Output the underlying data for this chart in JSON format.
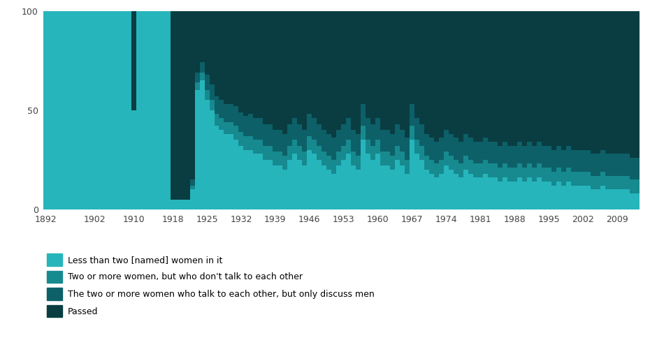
{
  "years": [
    1892,
    1893,
    1894,
    1895,
    1896,
    1897,
    1898,
    1899,
    1900,
    1901,
    1902,
    1903,
    1904,
    1905,
    1906,
    1907,
    1908,
    1909,
    1910,
    1911,
    1912,
    1913,
    1914,
    1915,
    1916,
    1917,
    1918,
    1919,
    1920,
    1921,
    1922,
    1923,
    1924,
    1925,
    1926,
    1927,
    1928,
    1929,
    1930,
    1931,
    1932,
    1933,
    1934,
    1935,
    1936,
    1937,
    1938,
    1939,
    1940,
    1941,
    1942,
    1943,
    1944,
    1945,
    1946,
    1947,
    1948,
    1949,
    1950,
    1951,
    1952,
    1953,
    1954,
    1955,
    1956,
    1957,
    1958,
    1959,
    1960,
    1961,
    1962,
    1963,
    1964,
    1965,
    1966,
    1967,
    1968,
    1969,
    1970,
    1971,
    1972,
    1973,
    1974,
    1975,
    1976,
    1977,
    1978,
    1979,
    1980,
    1981,
    1982,
    1983,
    1984,
    1985,
    1986,
    1987,
    1988,
    1989,
    1990,
    1991,
    1992,
    1993,
    1994,
    1995,
    1996,
    1997,
    1998,
    1999,
    2000,
    2001,
    2002,
    2003,
    2004,
    2005,
    2006,
    2007,
    2008,
    2009,
    2010,
    2011,
    2012,
    2013
  ],
  "cat1_pct": [
    100,
    100,
    100,
    100,
    100,
    100,
    100,
    100,
    100,
    100,
    100,
    100,
    100,
    100,
    100,
    100,
    100,
    100,
    50,
    100,
    100,
    100,
    100,
    100,
    100,
    100,
    5,
    5,
    5,
    5,
    10,
    60,
    65,
    55,
    50,
    42,
    40,
    38,
    38,
    35,
    32,
    30,
    30,
    28,
    28,
    25,
    25,
    22,
    22,
    20,
    25,
    28,
    25,
    22,
    30,
    28,
    25,
    22,
    20,
    18,
    22,
    25,
    28,
    22,
    20,
    35,
    28,
    25,
    28,
    22,
    22,
    20,
    25,
    22,
    18,
    35,
    28,
    25,
    20,
    18,
    16,
    18,
    22,
    20,
    18,
    16,
    20,
    18,
    16,
    16,
    18,
    16,
    16,
    14,
    16,
    14,
    14,
    16,
    14,
    16,
    14,
    16,
    14,
    14,
    12,
    14,
    12,
    14,
    12,
    12,
    12,
    12,
    10,
    10,
    12,
    10,
    10,
    10,
    10,
    10,
    8,
    8
  ],
  "cat2_pct": [
    0,
    0,
    0,
    0,
    0,
    0,
    0,
    0,
    0,
    0,
    0,
    0,
    0,
    0,
    0,
    0,
    0,
    0,
    0,
    0,
    0,
    0,
    0,
    0,
    0,
    0,
    0,
    0,
    0,
    0,
    2,
    4,
    4,
    5,
    5,
    6,
    6,
    6,
    6,
    7,
    7,
    7,
    7,
    7,
    7,
    7,
    7,
    7,
    7,
    7,
    7,
    7,
    7,
    7,
    7,
    7,
    7,
    7,
    7,
    7,
    7,
    7,
    7,
    7,
    7,
    7,
    7,
    7,
    7,
    7,
    7,
    7,
    7,
    7,
    7,
    7,
    7,
    7,
    7,
    7,
    7,
    7,
    7,
    7,
    7,
    7,
    7,
    7,
    7,
    7,
    7,
    7,
    7,
    7,
    7,
    7,
    7,
    7,
    7,
    7,
    7,
    7,
    7,
    7,
    7,
    7,
    7,
    7,
    7,
    7,
    7,
    7,
    7,
    7,
    7,
    7,
    7,
    7,
    7,
    7,
    7,
    7
  ],
  "cat3_pct": [
    0,
    0,
    0,
    0,
    0,
    0,
    0,
    0,
    0,
    0,
    0,
    0,
    0,
    0,
    0,
    0,
    0,
    0,
    0,
    0,
    0,
    0,
    0,
    0,
    0,
    0,
    0,
    0,
    0,
    0,
    3,
    5,
    5,
    8,
    8,
    9,
    9,
    9,
    9,
    10,
    10,
    10,
    11,
    11,
    11,
    11,
    11,
    11,
    11,
    11,
    11,
    11,
    11,
    11,
    11,
    11,
    11,
    11,
    11,
    11,
    11,
    11,
    11,
    11,
    11,
    11,
    11,
    11,
    11,
    11,
    11,
    11,
    11,
    11,
    11,
    11,
    11,
    11,
    11,
    11,
    11,
    11,
    11,
    11,
    11,
    11,
    11,
    11,
    11,
    11,
    11,
    11,
    11,
    11,
    11,
    11,
    11,
    11,
    11,
    11,
    11,
    11,
    11,
    11,
    11,
    11,
    11,
    11,
    11,
    11,
    11,
    11,
    11,
    11,
    11,
    11,
    11,
    11,
    11,
    11,
    11,
    11
  ],
  "cat4_pct": [
    0,
    0,
    0,
    0,
    0,
    0,
    0,
    0,
    0,
    0,
    0,
    0,
    0,
    0,
    0,
    0,
    0,
    0,
    50,
    0,
    0,
    0,
    0,
    0,
    0,
    0,
    95,
    95,
    95,
    95,
    85,
    31,
    26,
    32,
    37,
    43,
    45,
    47,
    47,
    48,
    51,
    53,
    52,
    54,
    54,
    57,
    57,
    60,
    60,
    62,
    57,
    54,
    57,
    60,
    52,
    54,
    57,
    60,
    62,
    64,
    60,
    57,
    54,
    60,
    62,
    47,
    54,
    57,
    54,
    60,
    60,
    62,
    57,
    60,
    64,
    47,
    54,
    57,
    62,
    64,
    66,
    64,
    60,
    62,
    64,
    66,
    62,
    64,
    66,
    66,
    64,
    66,
    66,
    68,
    66,
    68,
    68,
    66,
    68,
    66,
    68,
    66,
    68,
    68,
    70,
    68,
    70,
    68,
    70,
    70,
    70,
    70,
    72,
    72,
    70,
    72,
    72,
    72,
    72,
    72,
    74,
    74
  ],
  "colors": [
    "#27b5bc",
    "#178a8f",
    "#0d6068",
    "#093d42"
  ],
  "legend_labels": [
    "Less than two [named] women in it",
    "Two or more women, but who don't talk to each other",
    "The two or more women who talk to each other, but only discuss men",
    "Passed"
  ],
  "xtick_years": [
    1892,
    1902,
    1910,
    1918,
    1925,
    1932,
    1939,
    1946,
    1953,
    1960,
    1967,
    1974,
    1981,
    1988,
    1995,
    2002,
    2009
  ],
  "xtick_labels": [
    "1892",
    "1902",
    "1910",
    "1918",
    "1925",
    "1932",
    "1939",
    "1946",
    "1953",
    "1960",
    "1967",
    "1974",
    "1981",
    "1988",
    "1995",
    "2002",
    "2009"
  ],
  "ylim": [
    0,
    100
  ],
  "background_color": "#ffffff"
}
